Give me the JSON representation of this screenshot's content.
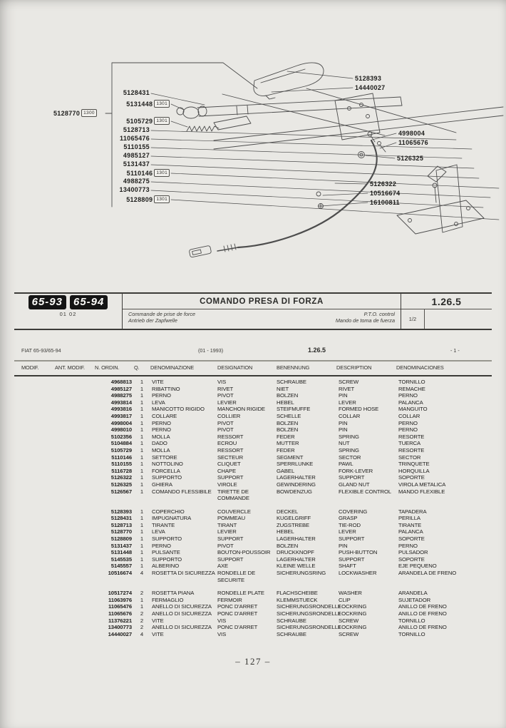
{
  "colors": {
    "paper": "#e9e8e4",
    "ink": "#2a2a28",
    "line_art": "#4d4d4d",
    "badge_bg": "#141414"
  },
  "page": {
    "footer": "– 127 –"
  },
  "diagram": {
    "left_parts": [
      {
        "pn": "5128431"
      },
      {
        "pn": "5131448",
        "tag": "1301"
      },
      {
        "pn": "5105729",
        "tag": "1301"
      },
      {
        "pn": "5128713"
      },
      {
        "pn": "11065476"
      },
      {
        "pn": "5110155"
      },
      {
        "pn": "4985127"
      },
      {
        "pn": "5131437"
      },
      {
        "pn": "5110146",
        "tag": "1301"
      },
      {
        "pn": "4988275"
      },
      {
        "pn": "13400773"
      },
      {
        "pn": "5128809",
        "tag": "1301"
      }
    ],
    "master_part": {
      "pn": "5128770",
      "tag": "1300"
    },
    "right_parts": [
      {
        "pn": "5128393"
      },
      {
        "pn": "14440027"
      },
      {
        "pn": "4998004"
      },
      {
        "pn": "11065676"
      },
      {
        "pn": "5126325"
      },
      {
        "pn": "5126322"
      },
      {
        "pn": "10516674"
      },
      {
        "pn": "16100811"
      }
    ]
  },
  "header_band": {
    "model_badges": [
      "65-93",
      "65-94"
    ],
    "badge_subtext": "01 02",
    "title": "COMANDO PRESA DI FORZA",
    "subtitle_fr": "Commande de prise de force",
    "subtitle_de": "Antrieb der Zapfwelle",
    "subtitle_en": "P.T.O. control",
    "subtitle_es": "Mando de toma de fuerza",
    "section_code": "1.26.5",
    "sheet": "1/2"
  },
  "info_line": {
    "model": "FIAT 65-93/65-94",
    "date": "(01 - 1993)",
    "section": "1.26.5",
    "page_ref": "- 1 -"
  },
  "table": {
    "columns": [
      "MODIF.",
      "ANT. MODIF.",
      "N. ORDIN.",
      "Q.",
      "DENOMINAZIONE",
      "DESIGNATION",
      "BENENNUNG",
      "DESCRIPTION",
      "DENOMINACIONES"
    ],
    "groups": [
      [
        [
          "4968813",
          "1",
          "VITE",
          "VIS",
          "SCHRAUBE",
          "SCREW",
          "TORNILLO"
        ],
        [
          "4985127",
          "1",
          "RIBATTINO",
          "RIVET",
          "NIET",
          "RIVET",
          "REMACHE"
        ],
        [
          "4988275",
          "1",
          "PERNO",
          "PIVOT",
          "BOLZEN",
          "PIN",
          "PERNO"
        ],
        [
          "4993814",
          "1",
          "LEVA",
          "LEVIER",
          "HEBEL",
          "LEVER",
          "PALANCA"
        ],
        [
          "4993816",
          "1",
          "MANICOTTO RIGIDO",
          "MANCHON RIGIDE",
          "STEIFMUFFE",
          "FORMED HOSE",
          "MANGUITO"
        ],
        [
          "4993817",
          "1",
          "COLLARE",
          "COLLIER",
          "SCHELLE",
          "COLLAR",
          "COLLAR"
        ],
        [
          "4998004",
          "1",
          "PERNO",
          "PIVOT",
          "BOLZEN",
          "PIN",
          "PERNO"
        ],
        [
          "4998010",
          "1",
          "PERNO",
          "PIVOT",
          "BOLZEN",
          "PIN",
          "PERNO"
        ],
        [
          "5102356",
          "1",
          "MOLLA",
          "RESSORT",
          "FEDER",
          "SPRING",
          "RESORTE"
        ],
        [
          "5104884",
          "1",
          "DADO",
          "ECROU",
          "MUTTER",
          "NUT",
          "TUERCA"
        ],
        [
          "5105729",
          "1",
          "MOLLA",
          "RESSORT",
          "FEDER",
          "SPRING",
          "RESORTE"
        ],
        [
          "5110146",
          "1",
          "SETTORE",
          "SECTEUR",
          "SEGMENT",
          "SECTOR",
          "SECTOR"
        ],
        [
          "5110155",
          "1",
          "NOTTOLINO",
          "CLIQUET",
          "SPERRLUNKE",
          "PAWL",
          "TRINQUETE"
        ],
        [
          "5116728",
          "1",
          "FORCELLA",
          "CHAPE",
          "GABEL",
          "FORK-LEVER",
          "HORQUILLA"
        ],
        [
          "5126322",
          "1",
          "SUPPORTO",
          "SUPPORT",
          "LAGERHALTER",
          "SUPPORT",
          "SOPORTE"
        ],
        [
          "5126325",
          "1",
          "GHIERA",
          "VIROLE",
          "GEWINDERING",
          "GLAND NUT",
          "VIROLA METALICA"
        ],
        [
          "5126567",
          "1",
          "COMANDO FLESSIBILE",
          "TIRETTE DE COMMANDE",
          "BOWDENZUG",
          "FLEXIBLE CONTROL",
          "MANDO FLEXIBLE"
        ]
      ],
      [
        [
          "5128393",
          "1",
          "COPERCHIO",
          "COUVERCLE",
          "DECKEL",
          "COVERING",
          "TAPADERA"
        ],
        [
          "5128431",
          "1",
          "IMPUGNATURA",
          "POMMEAU",
          "KUGELGRIFF",
          "GRASP",
          "PERILLA"
        ],
        [
          "5128713",
          "1",
          "TIRANTE",
          "TIRANT",
          "ZUGSTREBE",
          "TIE-ROD",
          "TIRANTE"
        ],
        [
          "5128770",
          "1",
          "LEVA",
          "LEVIER",
          "HEBEL",
          "LEVER",
          "PALANCA"
        ],
        [
          "5128809",
          "1",
          "SUPPORTO",
          "SUPPORT",
          "LAGERHALTER",
          "SUPPORT",
          "SOPORTE"
        ],
        [
          "5131437",
          "1",
          "PERNO",
          "PIVOT",
          "BOLZEN",
          "PIN",
          "PERNO"
        ],
        [
          "5131448",
          "1",
          "PULSANTE",
          "BOUTON-POUSSOIR",
          "DRUCKKNOPF",
          "PUSH-BUTTON",
          "PULSADOR"
        ],
        [
          "5145535",
          "1",
          "SUPPORTO",
          "SUPPORT",
          "LAGERHALTER",
          "SUPPORT",
          "SOPORTE"
        ],
        [
          "5145557",
          "1",
          "ALBERINO",
          "AXE",
          "KLEINE WELLE",
          "SHAFT",
          "EJE PEQUENO"
        ],
        [
          "10516674",
          "4",
          "ROSETTA DI SICUREZZA",
          "RONDELLE DE SECURITE",
          "SICHERUNGSRING",
          "LOCKWASHER",
          "ARANDELA DE FRENO"
        ]
      ],
      [
        [
          "10517274",
          "2",
          "ROSETTA PIANA",
          "RONDELLE PLATE",
          "FLACHSCHEIBE",
          "WASHER",
          "ARANDELA"
        ],
        [
          "11063976",
          "1",
          "FERMAGLIO",
          "FERMOIR",
          "KLEMMSTUECK",
          "CLIP",
          "SUJETADOR"
        ],
        [
          "11065476",
          "1",
          "ANELLO DI SICUREZZA",
          "PONC D'ARRET",
          "SICHERUNGSRONDELLE",
          "LOCKRING",
          "ANILLO DE FRENO"
        ],
        [
          "11065676",
          "2",
          "ANELLO DI SICUREZZA",
          "PONC D'ARRET",
          "SICHERUNGSRONDELLE",
          "LOCKRING",
          "ANILLO DE FRENO"
        ],
        [
          "11376221",
          "2",
          "VITE",
          "VIS",
          "SCHRAUBE",
          "SCREW",
          "TORNILLO"
        ],
        [
          "13400773",
          "2",
          "ANELLO DI SICUREZZA",
          "PONC D'ARRET",
          "SICHERUNGSRONDELLE",
          "LOCKRING",
          "ANILLO DE FRENO"
        ],
        [
          "14440027",
          "4",
          "VITE",
          "VIS",
          "SCHRAUBE",
          "SCREW",
          "TORNILLO"
        ]
      ]
    ]
  }
}
